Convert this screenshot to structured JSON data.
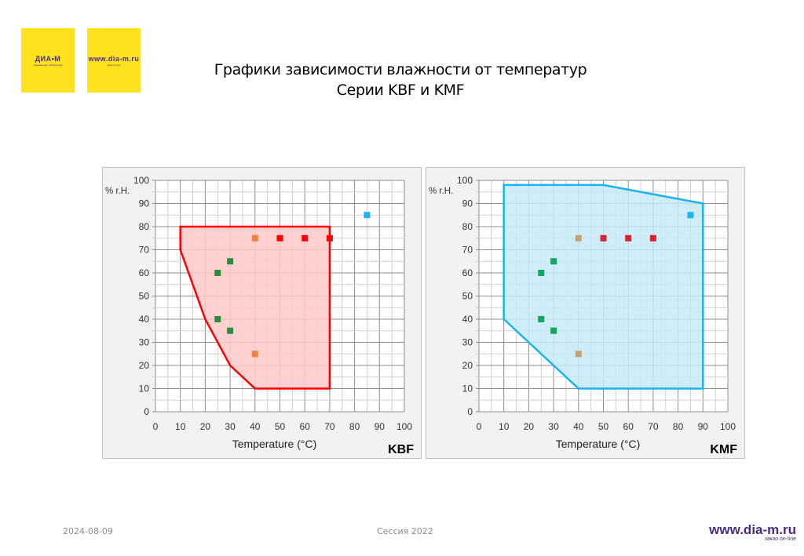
{
  "logos": {
    "left": {
      "name": "ДИА•М",
      "tagline": "современная лаборатория"
    },
    "right": {
      "name": "www.dia-m.ru",
      "tagline": "заказ on-line"
    }
  },
  "title": {
    "line1": "Графики зависимости влажности от температур",
    "line2": "Серии KBF и KMF"
  },
  "footer": {
    "date": "2024-08-09",
    "session": "Сессия 2022",
    "brand_url": "www.dia-m.ru",
    "brand_sub": "заказ on-line"
  },
  "chart_data": [
    {
      "type": "area",
      "label": "KBF",
      "xlabel": "Temperature (°C)",
      "ylabel": "% r.H.",
      "xlim": [
        0,
        100
      ],
      "ylim": [
        0,
        100
      ],
      "xticks": [
        0,
        10,
        20,
        30,
        40,
        50,
        60,
        70,
        80,
        90,
        100
      ],
      "yticks": [
        0,
        10,
        20,
        30,
        40,
        50,
        60,
        70,
        80,
        90,
        100
      ],
      "grid": true,
      "minor_grid_step": 5,
      "region": {
        "color": "#ff0000",
        "fill": "#ffc9c9",
        "points": [
          [
            10,
            80
          ],
          [
            70,
            80
          ],
          [
            70,
            10
          ],
          [
            40,
            10
          ],
          [
            30,
            20
          ],
          [
            20,
            40
          ],
          [
            10,
            70
          ]
        ]
      },
      "markers": [
        {
          "x": 25,
          "y": 60,
          "color": "#2e8b3e"
        },
        {
          "x": 30,
          "y": 65,
          "color": "#2e8b3e"
        },
        {
          "x": 25,
          "y": 40,
          "color": "#2e8b3e"
        },
        {
          "x": 30,
          "y": 35,
          "color": "#2e8b3e"
        },
        {
          "x": 40,
          "y": 75,
          "color": "#f4803a"
        },
        {
          "x": 40,
          "y": 25,
          "color": "#f4803a"
        },
        {
          "x": 50,
          "y": 75,
          "color": "#ff0000"
        },
        {
          "x": 60,
          "y": 75,
          "color": "#ff0000"
        },
        {
          "x": 70,
          "y": 75,
          "color": "#ff0000"
        },
        {
          "x": 85,
          "y": 85,
          "color": "#1eb4f0"
        }
      ]
    },
    {
      "type": "area",
      "label": "KMF",
      "xlabel": "Temperature (°C)",
      "ylabel": "% r.H.",
      "xlim": [
        0,
        100
      ],
      "ylim": [
        0,
        100
      ],
      "xticks": [
        0,
        10,
        20,
        30,
        40,
        50,
        60,
        70,
        80,
        90,
        100
      ],
      "yticks": [
        0,
        10,
        20,
        30,
        40,
        50,
        60,
        70,
        80,
        90,
        100
      ],
      "grid": true,
      "minor_grid_step": 5,
      "region": {
        "color": "#19b3ef",
        "fill": "#c6eaf7",
        "points": [
          [
            10,
            98
          ],
          [
            50,
            98
          ],
          [
            90,
            90
          ],
          [
            90,
            10
          ],
          [
            40,
            10
          ],
          [
            10,
            40
          ]
        ]
      },
      "markers": [
        {
          "x": 25,
          "y": 60,
          "color": "#12a860"
        },
        {
          "x": 30,
          "y": 65,
          "color": "#12a860"
        },
        {
          "x": 25,
          "y": 40,
          "color": "#12a860"
        },
        {
          "x": 30,
          "y": 35,
          "color": "#12a860"
        },
        {
          "x": 40,
          "y": 75,
          "color": "#c9a06a"
        },
        {
          "x": 40,
          "y": 25,
          "color": "#c9a06a"
        },
        {
          "x": 50,
          "y": 75,
          "color": "#d9222f"
        },
        {
          "x": 60,
          "y": 75,
          "color": "#d9222f"
        },
        {
          "x": 70,
          "y": 75,
          "color": "#d9222f"
        },
        {
          "x": 85,
          "y": 85,
          "color": "#1eb4f0"
        }
      ]
    }
  ]
}
